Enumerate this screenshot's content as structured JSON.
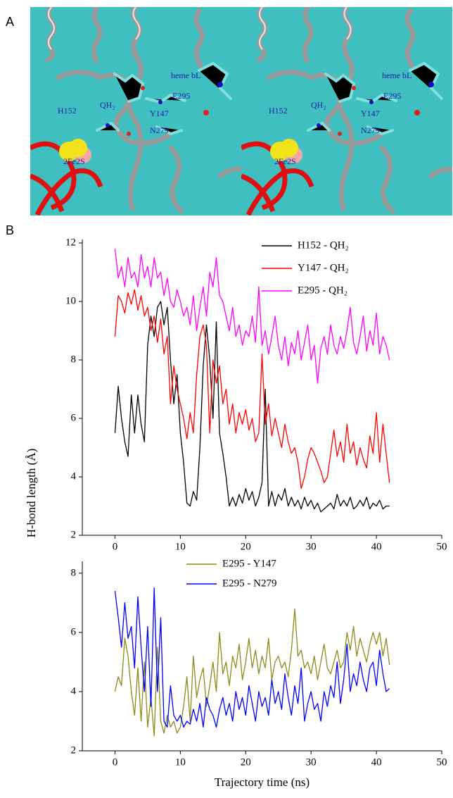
{
  "panel_labels": {
    "a": "A",
    "b": "B"
  },
  "structure_labels": {
    "heme": "heme bL",
    "qh2": "QH₂",
    "e295": "E295",
    "y147": "Y147",
    "h152": "H152",
    "n279": "N279",
    "fes": "2Fe2S"
  },
  "chart_data": [
    {
      "type": "line",
      "y_label": "H-bond length (Å)",
      "legend": "upper right",
      "x": [
        0,
        0.5,
        1,
        1.5,
        2,
        2.5,
        3,
        3.5,
        4,
        4.5,
        5,
        5.5,
        6,
        6.5,
        7,
        7.5,
        8,
        8.5,
        9,
        9.5,
        10,
        10.5,
        11,
        11.5,
        12,
        12.5,
        13,
        13.5,
        14,
        14.5,
        15,
        15.5,
        16,
        16.5,
        17,
        17.5,
        18,
        18.5,
        19,
        19.5,
        20,
        20.5,
        21,
        21.5,
        22,
        22.5,
        23,
        23.5,
        24,
        24.5,
        25,
        25.5,
        26,
        26.5,
        27,
        27.5,
        28,
        28.5,
        29,
        29.5,
        30,
        30.5,
        31,
        31.5,
        32,
        32.5,
        33,
        33.5,
        34,
        34.5,
        35,
        35.5,
        36,
        36.5,
        37,
        37.5,
        38,
        38.5,
        39,
        39.5,
        40,
        40.5,
        41,
        41.5,
        42
      ],
      "series": [
        {
          "name": "H152 - QH₂",
          "color": "#000000",
          "values": [
            5.5,
            7.1,
            6.0,
            5.2,
            4.7,
            6.8,
            5.5,
            6.8,
            5.8,
            5.2,
            8.5,
            9.5,
            8.8,
            9.8,
            10.0,
            9.2,
            9.8,
            8.0,
            6.5,
            7.5,
            5.5,
            4.5,
            3.1,
            3.0,
            3.5,
            3.2,
            5.0,
            7.8,
            9.2,
            8.0,
            6.0,
            9.3,
            5.5,
            4.8,
            4.0,
            3.0,
            3.3,
            3.0,
            3.4,
            3.1,
            3.6,
            3.2,
            3.5,
            3.0,
            3.3,
            3.8,
            7.0,
            3.0,
            3.5,
            3.0,
            3.4,
            3.2,
            3.6,
            3.0,
            3.3,
            3.0,
            3.2,
            2.9,
            3.3,
            3.0,
            3.2,
            2.9,
            3.1,
            2.8,
            2.9,
            3.0,
            3.1,
            2.9,
            3.4,
            3.0,
            3.2,
            3.0,
            3.3,
            2.9,
            3.0,
            3.2,
            3.0,
            3.3,
            2.9,
            3.1,
            3.0,
            3.2,
            2.9,
            3.0,
            3.0
          ]
        },
        {
          "name": "Y147 - QH₂",
          "color": "#ff0000",
          "values": [
            8.8,
            10.2,
            10.0,
            9.6,
            10.3,
            9.9,
            10.4,
            9.7,
            10.2,
            9.5,
            9.8,
            9.0,
            9.5,
            8.6,
            9.4,
            8.2,
            8.8,
            6.5,
            7.8,
            7.0,
            6.5,
            6.0,
            5.3,
            6.2,
            5.5,
            7.5,
            8.8,
            9.2,
            8.5,
            5.5,
            8.0,
            7.2,
            7.8,
            6.5,
            7.0,
            5.8,
            6.5,
            5.5,
            6.2,
            5.8,
            6.3,
            5.6,
            6.0,
            5.2,
            5.5,
            8.2,
            5.8,
            6.5,
            5.4,
            6.0,
            5.5,
            5.0,
            5.8,
            5.2,
            4.8,
            5.0,
            4.5,
            3.6,
            4.0,
            4.6,
            5.0,
            4.8,
            4.5,
            4.2,
            3.8,
            4.0,
            4.8,
            5.6,
            4.7,
            5.2,
            4.5,
            5.8,
            4.8,
            5.2,
            4.4,
            5.0,
            4.6,
            4.3,
            5.4,
            4.8,
            6.2,
            4.5,
            5.8,
            4.8,
            3.8
          ]
        },
        {
          "name": "E295 - QH₂",
          "color": "#ff00ff",
          "values": [
            11.8,
            10.8,
            11.2,
            10.5,
            11.5,
            10.8,
            11.0,
            10.5,
            11.6,
            10.8,
            11.2,
            10.5,
            11.5,
            10.8,
            11.0,
            10.2,
            10.8,
            10.0,
            9.8,
            10.4,
            10.0,
            9.5,
            9.8,
            9.2,
            10.2,
            9.0,
            9.8,
            10.5,
            9.5,
            11.0,
            10.5,
            11.5,
            10.2,
            10.0,
            9.5,
            9.0,
            9.8,
            8.8,
            9.2,
            8.5,
            9.0,
            8.8,
            9.5,
            8.6,
            10.5,
            8.5,
            9.0,
            8.2,
            8.8,
            9.5,
            8.5,
            8.0,
            8.8,
            7.8,
            8.6,
            8.2,
            9.0,
            8.0,
            8.6,
            9.2,
            8.0,
            8.5,
            7.2,
            8.4,
            8.8,
            8.2,
            9.2,
            8.5,
            8.2,
            8.8,
            8.4,
            9.0,
            9.8,
            8.6,
            8.2,
            8.8,
            9.5,
            8.3,
            9.0,
            8.5,
            9.6,
            8.2,
            8.8,
            8.5,
            8.0
          ]
        }
      ],
      "xlim": [
        -5,
        50
      ],
      "xticks": [
        0,
        10,
        20,
        30,
        40,
        50
      ],
      "ylim": [
        2,
        12
      ],
      "yticks": [
        2,
        4,
        6,
        8,
        10,
        12
      ]
    },
    {
      "type": "line",
      "x_label": "Trajectory time (ns)",
      "legend": "upper center",
      "x": [
        0,
        0.5,
        1,
        1.5,
        2,
        2.5,
        3,
        3.5,
        4,
        4.5,
        5,
        5.5,
        6,
        6.5,
        7,
        7.5,
        8,
        8.5,
        9,
        9.5,
        10,
        10.5,
        11,
        11.5,
        12,
        12.5,
        13,
        13.5,
        14,
        14.5,
        15,
        15.5,
        16,
        16.5,
        17,
        17.5,
        18,
        18.5,
        19,
        19.5,
        20,
        20.5,
        21,
        21.5,
        22,
        22.5,
        23,
        23.5,
        24,
        24.5,
        25,
        25.5,
        26,
        26.5,
        27,
        27.5,
        28,
        28.5,
        29,
        29.5,
        30,
        30.5,
        31,
        31.5,
        32,
        32.5,
        33,
        33.5,
        34,
        34.5,
        35,
        35.5,
        36,
        36.5,
        37,
        37.5,
        38,
        38.5,
        39,
        39.5,
        40,
        40.5,
        41,
        41.5,
        42
      ],
      "series": [
        {
          "name": "E295 - Y147",
          "color": "#8b8b1a",
          "values": [
            4.0,
            4.5,
            4.2,
            5.8,
            5.2,
            4.0,
            3.2,
            4.8,
            3.0,
            5.0,
            2.8,
            3.8,
            2.5,
            5.5,
            3.0,
            2.6,
            3.2,
            2.8,
            3.0,
            2.6,
            2.8,
            3.5,
            4.5,
            3.0,
            5.2,
            3.8,
            4.4,
            4.8,
            3.5,
            4.2,
            5.0,
            4.0,
            6.0,
            4.6,
            5.0,
            4.2,
            5.2,
            4.8,
            5.6,
            4.4,
            5.0,
            5.8,
            4.8,
            5.4,
            4.6,
            5.2,
            4.8,
            5.8,
            4.4,
            5.0,
            5.2,
            4.8,
            5.0,
            4.5,
            5.4,
            6.8,
            5.2,
            5.4,
            4.8,
            5.0,
            4.6,
            5.2,
            4.4,
            5.0,
            5.6,
            4.8,
            4.6,
            5.0,
            5.4,
            4.8,
            5.0,
            6.0,
            5.4,
            6.2,
            5.2,
            5.8,
            5.4,
            5.0,
            5.6,
            6.0,
            5.6,
            6.0,
            5.2,
            5.8,
            4.9
          ]
        },
        {
          "name": "E295 - N279",
          "color": "#0000ff",
          "values": [
            7.4,
            6.5,
            5.5,
            7.0,
            5.8,
            6.2,
            4.8,
            7.2,
            5.5,
            4.0,
            6.2,
            3.5,
            7.5,
            4.0,
            6.5,
            3.0,
            2.8,
            4.2,
            3.2,
            3.0,
            3.2,
            2.8,
            3.0,
            2.9,
            3.4,
            3.0,
            3.6,
            2.8,
            3.8,
            3.4,
            3.2,
            2.8,
            3.4,
            3.8,
            3.2,
            3.6,
            3.0,
            4.0,
            3.4,
            3.8,
            3.2,
            4.2,
            3.6,
            3.0,
            4.0,
            3.5,
            3.8,
            3.2,
            4.4,
            3.6,
            4.0,
            3.4,
            4.6,
            3.8,
            3.2,
            4.2,
            3.6,
            4.8,
            3.0,
            3.6,
            4.0,
            3.4,
            3.6,
            3.0,
            4.0,
            3.5,
            4.2,
            3.8,
            5.0,
            3.6,
            4.4,
            5.6,
            4.0,
            4.6,
            4.2,
            5.0,
            4.4,
            4.0,
            4.8,
            5.0,
            4.2,
            5.4,
            4.6,
            4.0,
            4.1
          ]
        }
      ],
      "xlim": [
        -5,
        50
      ],
      "xticks": [
        0,
        10,
        20,
        30,
        40,
        50
      ],
      "ylim": [
        2,
        8.4
      ],
      "yticks": [
        2,
        4,
        6,
        8
      ]
    }
  ]
}
